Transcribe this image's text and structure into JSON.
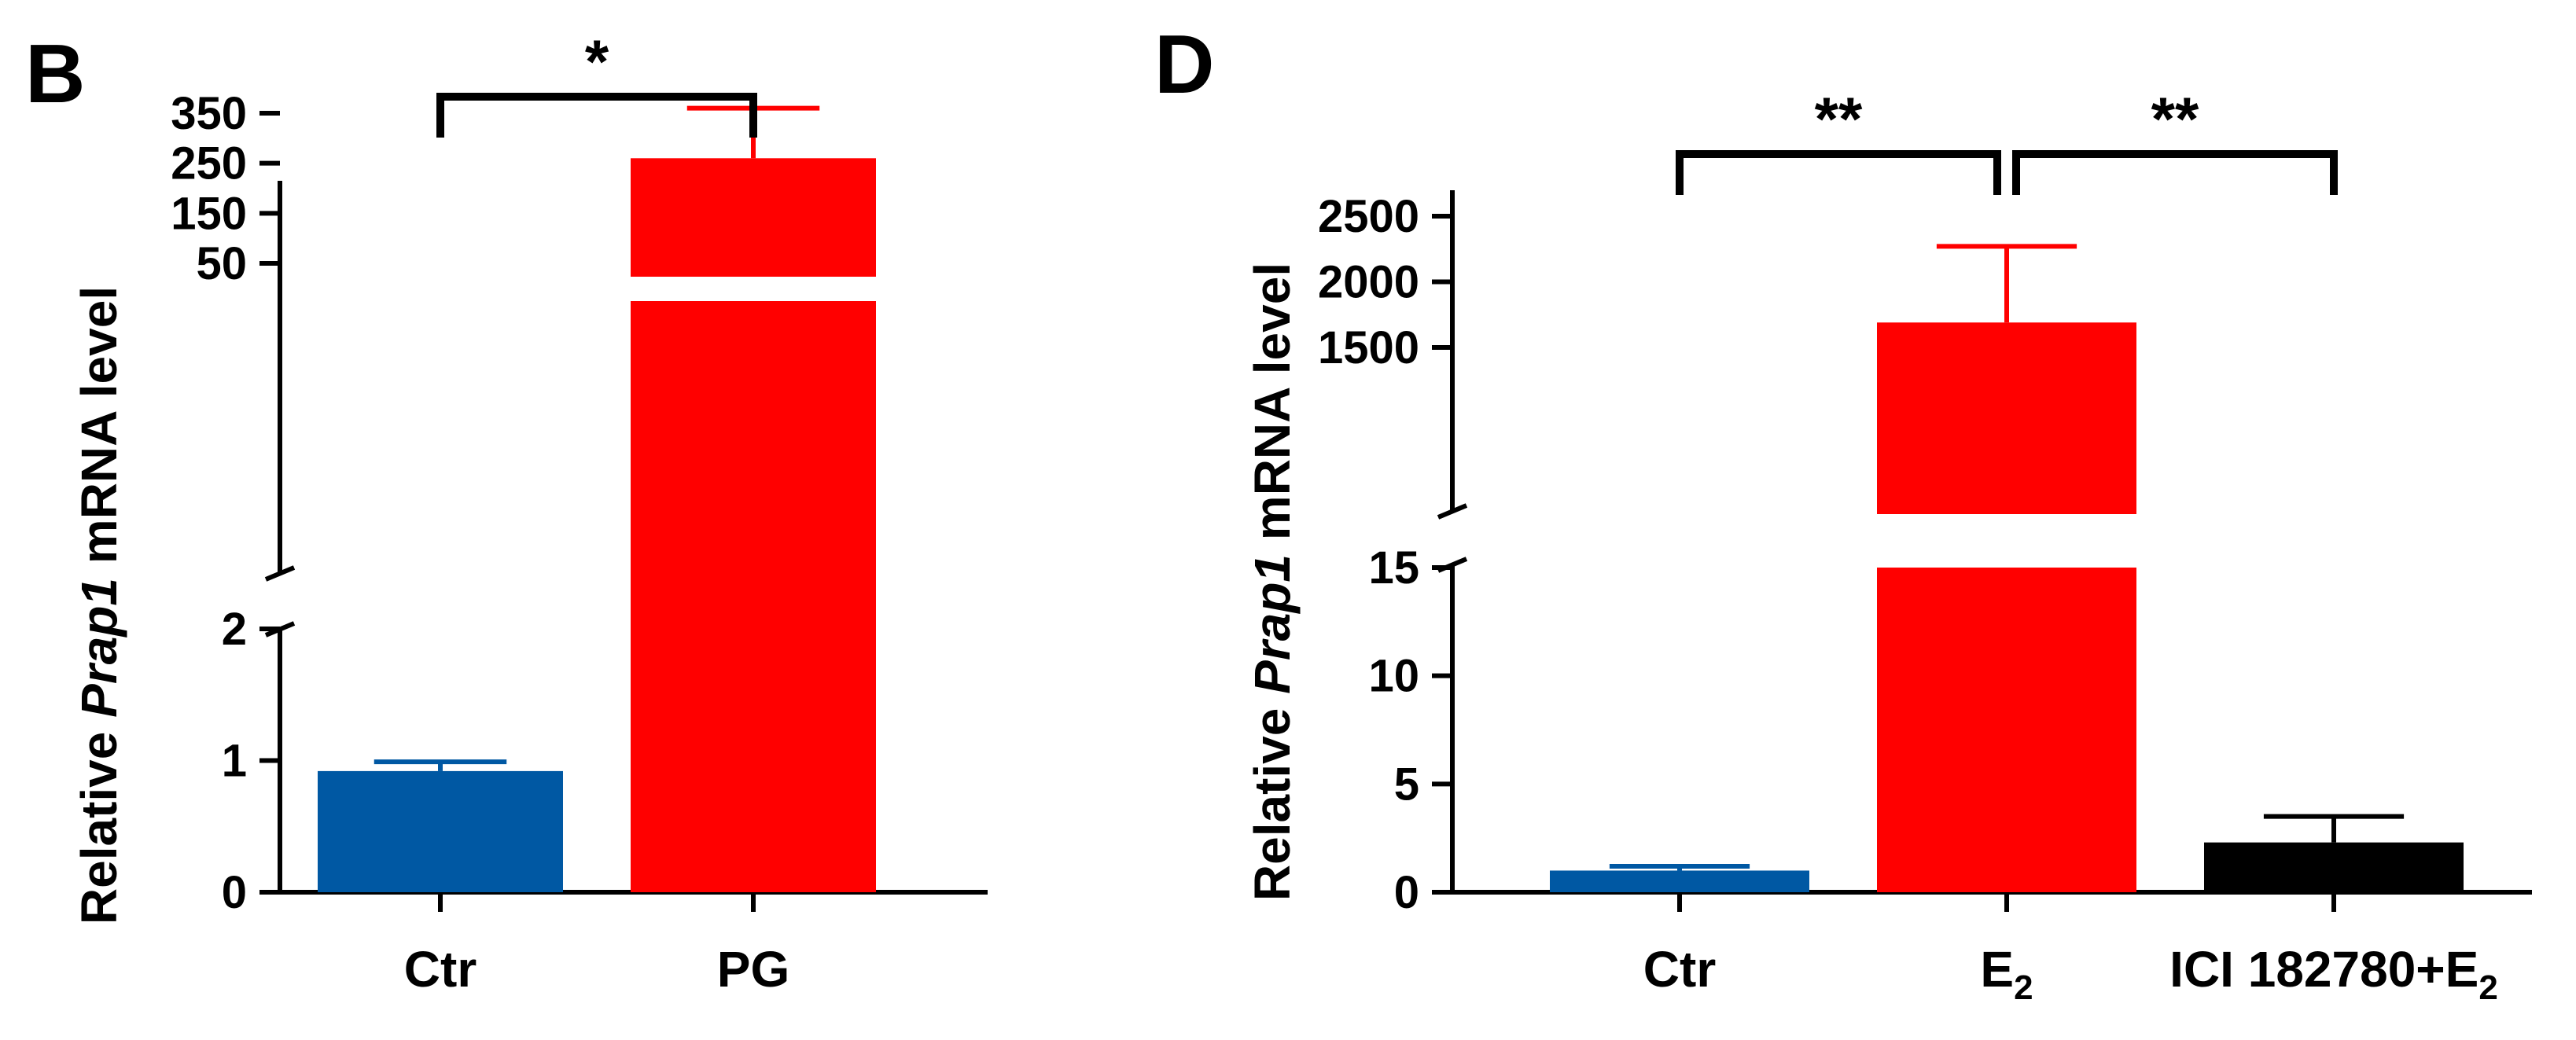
{
  "chart_data": [
    {
      "panel": "B",
      "type": "bar",
      "ylabel_prefix": "Relative ",
      "ylabel_gene": "Prap1",
      "ylabel_suffix": " mRNA level",
      "categories": [
        {
          "label": "Ctr",
          "sub": ""
        },
        {
          "label": "PG",
          "sub": ""
        }
      ],
      "values": [
        0.92,
        260
      ],
      "errors": [
        0.07,
        100
      ],
      "colors": [
        "#0058A3",
        "#FF0000"
      ],
      "axis_lower": {
        "range": [
          0,
          2
        ],
        "ticks": [
          "0",
          "1",
          "2"
        ]
      },
      "axis_upper": {
        "range": [
          50,
          350
        ],
        "ticks": [
          "50",
          "150",
          "250",
          "350"
        ]
      },
      "significance": [
        {
          "from": 0,
          "to": 1,
          "label": "*"
        }
      ]
    },
    {
      "panel": "D",
      "type": "bar",
      "ylabel_prefix": "Relative ",
      "ylabel_gene": "Prap1",
      "ylabel_suffix": " mRNA level",
      "categories": [
        {
          "label": "Ctr",
          "sub": ""
        },
        {
          "label": "E",
          "sub": "2"
        },
        {
          "label": "ICI 182780+E",
          "sub": "2"
        }
      ],
      "values": [
        1.0,
        1690,
        2.3
      ],
      "errors": [
        0.2,
        580,
        1.2
      ],
      "colors": [
        "#0058A3",
        "#FF0000",
        "#000000"
      ],
      "axis_lower": {
        "range": [
          0,
          15
        ],
        "ticks": [
          "0",
          "5",
          "10",
          "15"
        ]
      },
      "axis_upper": {
        "range": [
          1500,
          2500
        ],
        "ticks": [
          "1500",
          "2000",
          "2500"
        ]
      },
      "significance": [
        {
          "from": 0,
          "to": 1,
          "label": "**"
        },
        {
          "from": 1,
          "to": 2,
          "label": "**"
        }
      ]
    }
  ]
}
